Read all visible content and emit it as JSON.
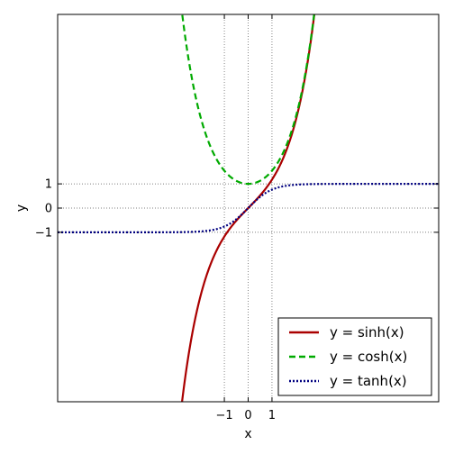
{
  "chart_data": {
    "type": "line",
    "title": "",
    "xlabel": "x",
    "ylabel": "y",
    "xlim": [
      -8,
      8
    ],
    "ylim": [
      -8,
      8
    ],
    "x_ticks": [
      -1,
      0,
      1
    ],
    "y_ticks": [
      -1,
      0,
      1
    ],
    "x_tick_labels": [
      "−1",
      "0",
      "1"
    ],
    "y_tick_labels": [
      "−1",
      "0",
      "1"
    ],
    "grid": "dotted lines at ticks",
    "legend_position": "lower-right",
    "series": [
      {
        "name": "y = sinh(x)",
        "function": "sinh",
        "color": "#aa0000",
        "style": "solid"
      },
      {
        "name": "y = cosh(x)",
        "function": "cosh",
        "color": "#00aa00",
        "style": "dashed"
      },
      {
        "name": "y = tanh(x)",
        "function": "tanh",
        "color": "#000080",
        "style": "dotted"
      }
    ]
  }
}
